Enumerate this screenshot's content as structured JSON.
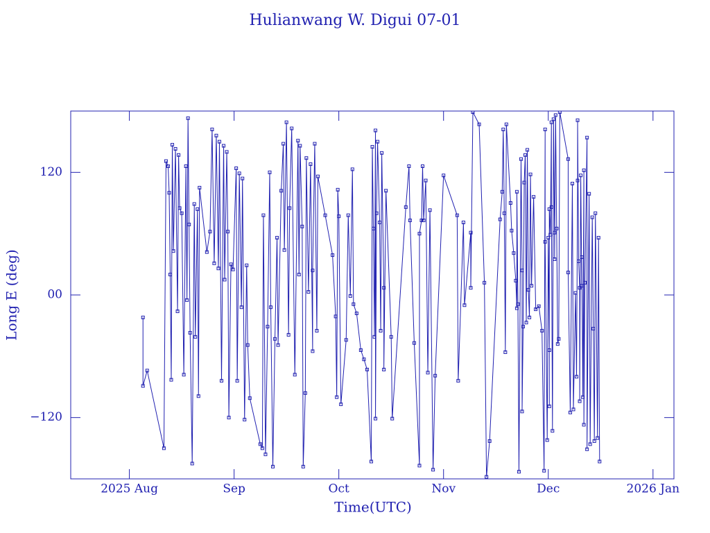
{
  "chart_data": {
    "type": "line",
    "title": "Hulianwang W. Digui 07-01",
    "xlabel": "Time(UTC)",
    "ylabel": "Long E (deg)",
    "color": "#2020b0",
    "markers": "square",
    "xlim": [
      7.44,
      13.2
    ],
    "xticks": [
      {
        "value": 8,
        "label": "2025 Aug"
      },
      {
        "value": 9,
        "label": "Sep"
      },
      {
        "value": 10,
        "label": "Oct"
      },
      {
        "value": 11,
        "label": "Nov"
      },
      {
        "value": 12,
        "label": "Dec"
      },
      {
        "value": 13,
        "label": "2026 Jan"
      }
    ],
    "ylim": [
      -180,
      180
    ],
    "yticks": [
      {
        "value": -120,
        "label": "−120"
      },
      {
        "value": 0,
        "label": "00"
      },
      120
    ],
    "x": [
      8.13,
      8.13,
      8.17,
      8.33,
      8.35,
      8.37,
      8.38,
      8.39,
      8.4,
      8.41,
      8.42,
      8.44,
      8.46,
      8.47,
      8.48,
      8.5,
      8.52,
      8.54,
      8.55,
      8.56,
      8.57,
      8.58,
      8.6,
      8.62,
      8.63,
      8.65,
      8.66,
      8.67,
      8.74,
      8.77,
      8.79,
      8.81,
      8.83,
      8.85,
      8.86,
      8.88,
      8.9,
      8.91,
      8.93,
      8.94,
      8.95,
      8.97,
      8.99,
      9.02,
      9.03,
      9.05,
      9.07,
      9.08,
      9.1,
      9.12,
      9.13,
      9.15,
      9.25,
      9.27,
      9.28,
      9.3,
      9.32,
      9.34,
      9.35,
      9.37,
      9.39,
      9.41,
      9.42,
      9.45,
      9.47,
      9.48,
      9.5,
      9.52,
      9.53,
      9.55,
      9.58,
      9.61,
      9.62,
      9.63,
      9.65,
      9.66,
      9.68,
      9.69,
      9.71,
      9.73,
      9.75,
      9.75,
      9.77,
      9.79,
      9.8,
      9.87,
      9.94,
      9.97,
      9.98,
      9.99,
      10,
      10.02,
      10.07,
      10.09,
      10.11,
      10.13,
      10.14,
      10.17,
      10.21,
      10.24,
      10.27,
      10.31,
      10.32,
      10.33,
      10.34,
      10.35,
      10.35,
      10.36,
      10.37,
      10.39,
      10.4,
      10.41,
      10.43,
      10.43,
      10.45,
      10.5,
      10.51,
      10.64,
      10.67,
      10.68,
      10.72,
      10.77,
      10.77,
      10.79,
      10.8,
      10.81,
      10.83,
      10.85,
      10.87,
      10.9,
      10.92,
      11,
      11.13,
      11.14,
      11.19,
      11.2,
      11.26,
      11.26,
      11.28,
      11.34,
      11.39,
      11.41,
      11.44,
      11.54,
      11.56,
      11.57,
      11.58,
      11.59,
      11.6,
      11.64,
      11.65,
      11.67,
      11.69,
      11.7,
      11.7,
      11.71,
      11.72,
      11.74,
      11.75,
      11.75,
      11.76,
      11.77,
      11.78,
      11.79,
      11.8,
      11.81,
      11.82,
      11.83,
      11.84,
      11.86,
      11.88,
      11.91,
      11.94,
      11.96,
      11.97,
      11.97,
      11.99,
      12,
      12.01,
      12.01,
      12.01,
      12.02,
      12.03,
      12.03,
      12.04,
      12.05,
      12.06,
      12.06,
      12.07,
      12.08,
      12.09,
      12.1,
      12.11,
      12.19,
      12.19,
      12.21,
      12.23,
      12.24,
      12.26,
      12.27,
      12.28,
      12.28,
      12.29,
      12.3,
      12.3,
      12.31,
      12.32,
      12.32,
      12.33,
      12.34,
      12.34,
      12.35,
      12.37,
      12.37,
      12.39,
      12.4,
      12.42,
      12.43,
      12.44,
      12.45,
      12.47,
      12.48,
      12.49
    ],
    "values": [
      -22,
      -89,
      -74,
      -150,
      131,
      126,
      100,
      20,
      -83,
      147,
      43,
      143,
      -16,
      137,
      85,
      80,
      -78,
      126,
      -5,
      173,
      69,
      -37,
      -165,
      89,
      -41,
      84,
      -99,
      105,
      42,
      62,
      162,
      31,
      156,
      26,
      150,
      -84,
      146,
      15,
      140,
      62,
      -120,
      30,
      25,
      124,
      -84,
      119,
      -12,
      114,
      -122,
      29,
      -49,
      -101,
      -146,
      -150,
      78,
      -156,
      -31,
      120,
      -12,
      -168,
      -43,
      56,
      -49,
      102,
      148,
      44,
      169,
      -39,
      85,
      163,
      -78,
      151,
      20,
      146,
      67,
      -168,
      -96,
      134,
      3,
      128,
      -55,
      24,
      148,
      -35,
      116,
      78,
      39,
      -21,
      -100,
      103,
      77,
      -107,
      -44,
      78,
      -1,
      123,
      -9,
      -18,
      -54,
      -63,
      -73,
      -163,
      145,
      65,
      -41,
      161,
      -121,
      80,
      150,
      71,
      -35,
      139,
      7,
      -73,
      102,
      -41,
      -121,
      86,
      126,
      73,
      -47,
      -167,
      60,
      73,
      126,
      73,
      112,
      -76,
      83,
      -171,
      -79,
      117,
      78,
      -84,
      71,
      -10,
      61,
      7,
      179,
      167,
      12,
      -178,
      -143,
      74,
      101,
      162,
      80,
      -56,
      167,
      90,
      63,
      41,
      14,
      -13,
      101,
      -9,
      -173,
      133,
      24,
      -114,
      -31,
      110,
      137,
      -27,
      142,
      5,
      -22,
      118,
      9,
      96,
      -14,
      -11,
      -35,
      -172,
      162,
      52,
      -142,
      56,
      -54,
      -109,
      84,
      59,
      169,
      86,
      -133,
      172,
      61,
      35,
      176,
      65,
      -48,
      -43,
      179,
      133,
      22,
      -115,
      109,
      -112,
      2,
      -80,
      112,
      171,
      33,
      7,
      -104,
      117,
      9,
      37,
      -100,
      122,
      -127,
      12,
      154,
      -151,
      99,
      -146,
      76,
      -33,
      -143,
      80,
      -140,
      56,
      -163
    ]
  }
}
